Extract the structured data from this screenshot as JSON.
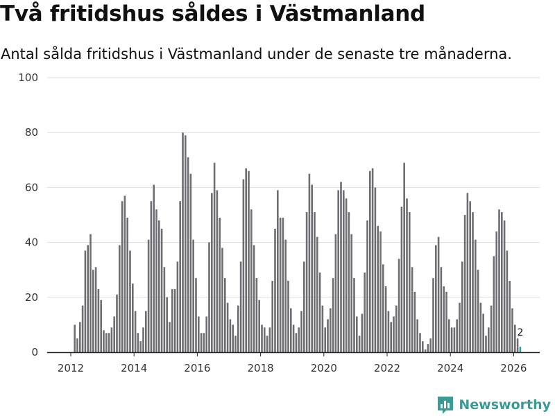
{
  "title": "Två fritidshus såldes i Västmanland",
  "subtitle": "Antal sålda fritidshus i Västmanland under de senaste tre månaderna.",
  "brand": "Newsworthy",
  "colors": {
    "bar": "#6e6d72",
    "highlight": "#3a9a96",
    "grid": "#dddddd",
    "brand": "#3a9a96"
  },
  "chart_data": {
    "type": "bar",
    "start_year": 2012,
    "start_month": 2,
    "ylim": [
      0,
      100
    ],
    "yticks": [
      0,
      20,
      40,
      60,
      80,
      100
    ],
    "xticks": [
      "2012",
      "2014",
      "2016",
      "2018",
      "2020",
      "2022",
      "2024",
      "2026"
    ],
    "values": [
      10,
      5,
      11,
      17,
      37,
      39,
      43,
      30,
      31,
      23,
      19,
      8,
      7,
      7,
      9,
      13,
      21,
      39,
      55,
      57,
      49,
      37,
      25,
      15,
      7,
      4,
      9,
      15,
      41,
      55,
      61,
      52,
      48,
      45,
      31,
      20,
      11,
      23,
      23,
      33,
      55,
      80,
      79,
      71,
      65,
      41,
      27,
      13,
      7,
      7,
      13,
      40,
      58,
      69,
      59,
      49,
      38,
      27,
      18,
      12,
      10,
      6,
      17,
      33,
      63,
      67,
      66,
      52,
      39,
      27,
      19,
      10,
      9,
      6,
      9,
      26,
      45,
      59,
      49,
      49,
      41,
      26,
      16,
      10,
      7,
      9,
      15,
      33,
      51,
      65,
      61,
      51,
      42,
      29,
      17,
      9,
      12,
      16,
      27,
      43,
      59,
      62,
      59,
      56,
      51,
      43,
      27,
      13,
      6,
      14,
      29,
      48,
      66,
      67,
      60,
      46,
      44,
      32,
      24,
      15,
      11,
      13,
      17,
      34,
      53,
      69,
      56,
      51,
      31,
      22,
      12,
      7,
      4,
      1,
      3,
      5,
      27,
      39,
      42,
      31,
      24,
      22,
      12,
      9,
      9,
      12,
      18,
      33,
      50,
      58,
      55,
      51,
      41,
      30,
      18,
      14,
      6,
      9,
      17,
      35,
      44,
      52,
      51,
      48,
      37,
      26,
      16,
      10,
      5,
      2
    ],
    "highlight_last": 1,
    "annotation": {
      "value": 2,
      "label": "2"
    }
  }
}
